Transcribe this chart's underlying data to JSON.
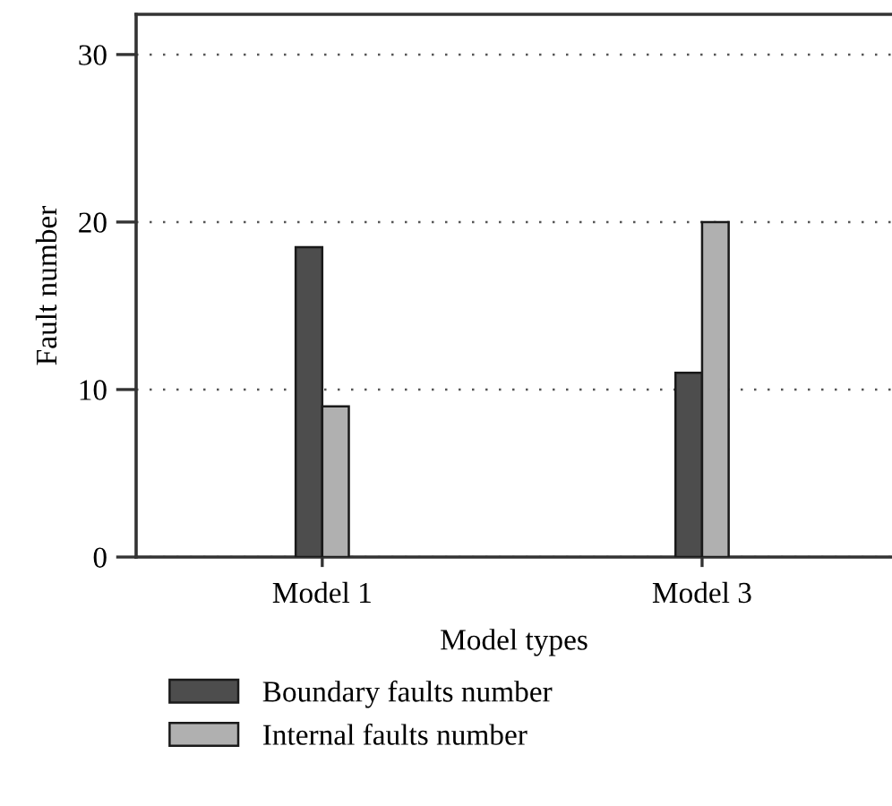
{
  "chart_data": {
    "type": "bar",
    "xlabel": "Model types",
    "ylabel": "Fault number",
    "categories": [
      "Model 1",
      "Model 3"
    ],
    "series": [
      {
        "name": "Boundary faults number",
        "color": "#4d4d4d",
        "values": [
          18.5,
          11
        ]
      },
      {
        "name": "Internal faults number",
        "color": "#b0b0b0",
        "values": [
          9,
          20
        ]
      }
    ],
    "ylim": [
      0,
      32.4
    ],
    "yticks": [
      0,
      10,
      20,
      30
    ],
    "grid": "y",
    "legend": "bottom"
  }
}
